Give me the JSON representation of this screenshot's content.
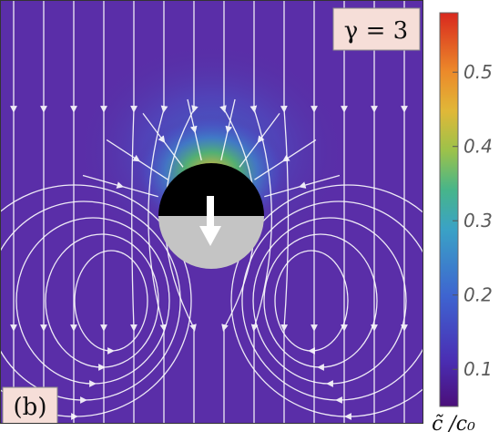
{
  "chart_data": {
    "type": "heatmap",
    "title": "",
    "panel_label": "(b)",
    "parameter_label": "γ = 3",
    "colorbar": {
      "label": "c̃ /c₀",
      "ticks": [
        0.1,
        0.2,
        0.3,
        0.4,
        0.5
      ],
      "tick_labels": [
        "0.1",
        "0.2",
        "0.3",
        "0.4",
        "0.5"
      ],
      "range": [
        0.05,
        0.58
      ]
    },
    "field": {
      "background_value": 0.07,
      "peak_value": 0.57,
      "peak_location": "upper (black) cap of particle",
      "particle": "Janus sphere: black upper half, grey lower half",
      "motion_arrow": "downward",
      "streamlines": "white"
    },
    "colors": {
      "particle_top": "#000000",
      "particle_bottom": "#c4c4c4",
      "streamline": "#ffffff"
    }
  }
}
